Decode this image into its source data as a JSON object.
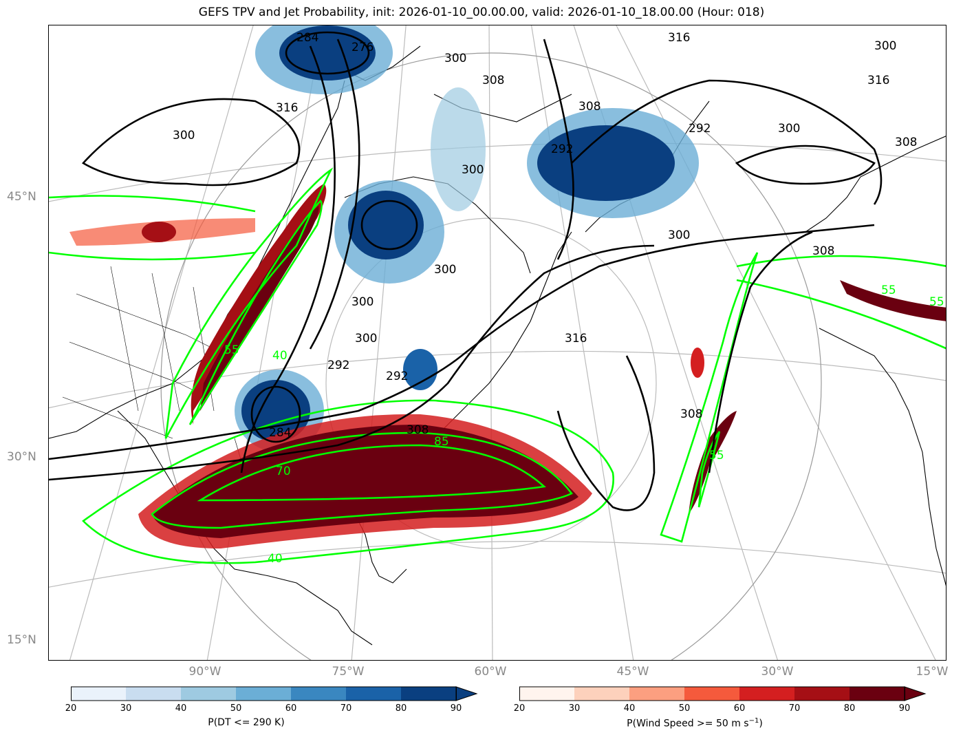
{
  "title": "GEFS TPV and Jet Probability, init: 2026-01-10_00.00.00, valid: 2026-01-10_18.00.00 (Hour: 018)",
  "lat_labels": [
    "45°N",
    "30°N",
    "15°N"
  ],
  "lon_labels": [
    "90°W",
    "75°W",
    "60°W",
    "45°W",
    "30°W",
    "15°W"
  ],
  "contour_labels": {
    "black": [
      "300",
      "308",
      "316",
      "300",
      "292",
      "300",
      "308",
      "300",
      "300",
      "292",
      "308",
      "300",
      "316",
      "292",
      "300",
      "308",
      "316",
      "308",
      "284",
      "276",
      "284",
      "292",
      "300",
      "308",
      "300",
      "316"
    ],
    "green": [
      "55",
      "40",
      "85",
      "70",
      "40",
      "55",
      "55",
      "55"
    ]
  },
  "colorbars": {
    "dt": {
      "ticks": [
        "20",
        "30",
        "40",
        "50",
        "60",
        "70",
        "80",
        "90"
      ],
      "label": "P(DT <= 290 K)",
      "colors": [
        "#eaf2fb",
        "#c9ddf0",
        "#9ecae1",
        "#6baed6",
        "#3a87c0",
        "#1a62a8",
        "#0a3f80"
      ]
    },
    "wind": {
      "ticks": [
        "20",
        "30",
        "40",
        "50",
        "60",
        "70",
        "80",
        "90"
      ],
      "label_main": "P(Wind Speed >= 50 m s",
      "label_sup": "−1",
      "label_end": ")",
      "colors": [
        "#fff4ee",
        "#fdd1bc",
        "#fc9f80",
        "#f55a3c",
        "#d41f20",
        "#a50f15",
        "#6a0010"
      ]
    }
  }
}
